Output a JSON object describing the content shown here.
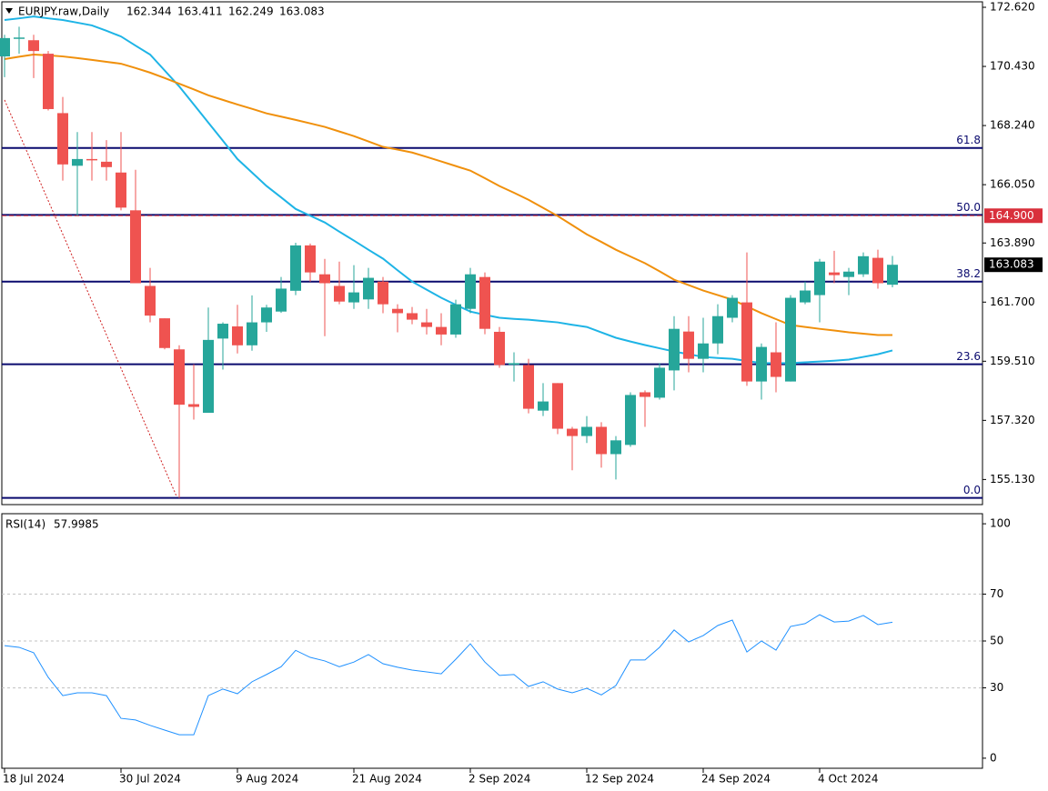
{
  "chart_data": [
    {
      "type": "candlestick",
      "title": "EURJPY.raw,Daily",
      "categories": [
        "18 Jul 2024",
        null,
        null,
        null,
        null,
        null,
        null,
        null,
        "30 Jul 2024",
        null,
        null,
        null,
        null,
        null,
        null,
        null,
        "9 Aug 2024",
        null,
        null,
        null,
        null,
        null,
        null,
        null,
        "21 Aug 2024",
        null,
        null,
        null,
        null,
        null,
        null,
        null,
        "2 Sep 2024",
        null,
        null,
        null,
        null,
        null,
        null,
        null,
        "12 Sep 2024",
        null,
        null,
        null,
        null,
        null,
        null,
        null,
        "24 Sep 2024",
        null,
        null,
        null,
        null,
        null,
        null,
        null,
        "4 Oct 2024",
        null,
        null,
        null,
        null,
        null
      ],
      "ohlc": {
        "open": [
          170.8,
          171.45,
          171.4,
          170.9,
          168.7,
          166.75,
          167.0,
          166.9,
          166.5,
          165.1,
          162.3,
          161.1,
          159.95,
          157.92,
          157.6,
          160.35,
          160.8,
          160.1,
          160.95,
          161.35,
          162.12,
          163.8,
          162.73,
          162.3,
          161.69,
          161.8,
          162.46,
          161.45,
          161.29,
          160.95,
          160.78,
          160.5,
          161.45,
          162.63,
          160.6,
          159.38,
          159.37,
          157.68,
          158.7,
          157.01,
          156.74,
          157.08,
          156.07,
          156.41,
          158.36,
          158.16,
          159.17,
          160.61,
          159.6,
          160.17,
          161.12,
          161.69,
          158.76,
          159.84,
          158.76,
          161.69,
          161.96,
          162.8,
          162.63,
          162.73,
          163.34,
          162.344
        ],
        "high": [
          171.6,
          171.9,
          171.6,
          171.0,
          169.3,
          168.0,
          168.0,
          167.7,
          168.0,
          166.6,
          162.97,
          161.1,
          160.1,
          159.4,
          161.5,
          160.95,
          161.6,
          161.95,
          161.6,
          162.63,
          163.9,
          163.87,
          163.3,
          163.2,
          163.07,
          162.97,
          162.63,
          161.62,
          161.52,
          161.45,
          161.29,
          161.79,
          162.97,
          162.8,
          160.78,
          159.84,
          159.6,
          158.7,
          158.7,
          157.08,
          157.48,
          157.25,
          156.74,
          158.36,
          158.43,
          159.44,
          161.18,
          161.18,
          161.12,
          161.62,
          161.96,
          163.54,
          160.17,
          160.95,
          161.96,
          162.46,
          163.3,
          163.6,
          162.97,
          163.54,
          163.64,
          163.411
        ],
        "low": [
          170.03,
          170.9,
          170.0,
          168.8,
          166.2,
          164.9,
          166.2,
          166.2,
          165.1,
          162.4,
          160.95,
          159.95,
          154.45,
          157.35,
          157.6,
          159.2,
          159.8,
          159.9,
          160.6,
          161.3,
          161.96,
          162.46,
          160.44,
          161.62,
          161.45,
          161.45,
          161.29,
          160.58,
          160.88,
          160.5,
          160.1,
          160.38,
          161.29,
          160.51,
          159.27,
          158.76,
          157.58,
          157.48,
          156.81,
          155.47,
          156.48,
          155.57,
          155.13,
          156.34,
          157.08,
          158.09,
          158.43,
          159.1,
          159.1,
          159.77,
          160.95,
          158.6,
          158.09,
          158.36,
          158.76,
          161.62,
          160.95,
          162.4,
          161.96,
          162.63,
          162.2,
          162.249
        ],
        "close": [
          171.48,
          171.5,
          171.0,
          168.85,
          166.8,
          167.0,
          166.95,
          166.7,
          165.2,
          162.4,
          161.2,
          160.0,
          157.9,
          157.82,
          160.3,
          160.9,
          160.1,
          160.95,
          161.5,
          162.2,
          163.8,
          162.8,
          162.4,
          161.72,
          162.06,
          162.6,
          161.62,
          161.29,
          161.05,
          160.78,
          160.5,
          161.62,
          162.73,
          160.71,
          159.37,
          159.44,
          157.75,
          158.02,
          157.01,
          156.74,
          157.08,
          156.07,
          156.58,
          158.26,
          158.19,
          159.27,
          160.71,
          159.6,
          160.17,
          161.18,
          161.86,
          158.76,
          160.04,
          158.93,
          161.86,
          162.13,
          163.2,
          162.7,
          162.83,
          163.4,
          162.4,
          163.083
        ]
      },
      "up_color": "#26a69a",
      "down_color": "#ef5350",
      "moving_averages": [
        {
          "color": "#1eb4e6",
          "values": [
            172.15,
            172.21,
            172.28,
            172.21,
            172.15,
            172.05,
            171.95,
            171.75,
            171.54,
            171.2,
            170.87,
            170.28,
            169.69,
            169.02,
            168.35,
            167.68,
            167.0,
            166.5,
            166.0,
            165.58,
            165.15,
            164.9,
            164.65,
            164.31,
            163.98,
            163.64,
            163.31,
            162.88,
            162.46,
            162.16,
            161.86,
            161.6,
            161.35,
            161.23,
            161.12,
            161.08,
            161.05,
            161.0,
            160.95,
            160.86,
            160.78,
            160.58,
            160.38,
            160.24,
            160.11,
            159.99,
            159.87,
            159.77,
            159.67,
            159.63,
            159.6,
            159.52,
            159.44,
            159.44,
            159.44,
            159.47,
            159.5,
            159.53,
            159.57,
            159.67,
            159.77,
            159.91
          ]
        },
        {
          "color": "#f0900c",
          "values": [
            170.7,
            170.79,
            170.87,
            170.84,
            170.8,
            170.74,
            170.67,
            170.6,
            170.53,
            170.37,
            170.2,
            170.0,
            169.79,
            169.58,
            169.36,
            169.19,
            169.02,
            168.86,
            168.69,
            168.57,
            168.45,
            168.32,
            168.19,
            168.02,
            167.85,
            167.65,
            167.45,
            167.35,
            167.24,
            167.08,
            166.91,
            166.74,
            166.57,
            166.29,
            166.0,
            165.75,
            165.49,
            165.19,
            164.89,
            164.55,
            164.21,
            163.93,
            163.64,
            163.39,
            163.14,
            162.84,
            162.53,
            162.33,
            162.13,
            161.96,
            161.79,
            161.54,
            161.29,
            161.07,
            160.85,
            160.78,
            160.71,
            160.65,
            160.58,
            160.53,
            160.48,
            160.48
          ]
        }
      ],
      "fib_levels": [
        {
          "value": 167.41,
          "label": "61.8"
        },
        {
          "value": 164.93,
          "label": "50.0"
        },
        {
          "value": 162.46,
          "label": "38.2"
        },
        {
          "value": 159.4,
          "label": "23.6"
        },
        {
          "value": 154.45,
          "label": "0.0"
        }
      ],
      "fib_color": "#0a0a6e",
      "price_line": {
        "value": 164.9,
        "label": "164.900",
        "color": "#d9303c"
      },
      "ylim": [
        154.2,
        172.89
      ],
      "yticks": [
        {
          "value": 172.62,
          "label": "172.620"
        },
        {
          "value": 170.43,
          "label": "170.430"
        },
        {
          "value": 168.24,
          "label": "168.240"
        },
        {
          "value": 166.05,
          "label": "166.050"
        },
        {
          "value": 163.89,
          "label": "163.890"
        },
        {
          "value": 161.7,
          "label": "161.700"
        },
        {
          "value": 159.51,
          "label": "159.510"
        },
        {
          "value": 157.32,
          "label": "157.320"
        },
        {
          "value": 155.13,
          "label": "155.130"
        }
      ]
    },
    {
      "type": "line",
      "title": "RSI(14)",
      "color": "#1e90ff",
      "values": [
        48,
        47.3,
        45,
        34.5,
        26.7,
        27.9,
        27.9,
        26.7,
        17,
        16.3,
        14,
        12,
        10,
        10,
        26.7,
        29.5,
        27.5,
        32.6,
        35.7,
        39,
        46,
        43,
        41.5,
        39,
        41,
        44.2,
        40.3,
        38.8,
        37.6,
        36.8,
        36,
        42.2,
        48.8,
        41,
        35.3,
        35.7,
        30.6,
        32.6,
        29.5,
        27.9,
        29.8,
        27,
        31,
        41.9,
        41.9,
        47.3,
        54.7,
        49.6,
        52.3,
        56.6,
        58.9,
        45.3,
        50,
        46.1,
        56.2,
        57.4,
        61.2,
        58.1,
        58.5,
        60.9,
        57,
        57.9985
      ],
      "ylim": [
        -4.3,
        104.3
      ],
      "yticks": [
        0,
        30,
        50,
        70,
        100
      ],
      "grid": [
        30,
        50,
        70
      ]
    }
  ]
}
